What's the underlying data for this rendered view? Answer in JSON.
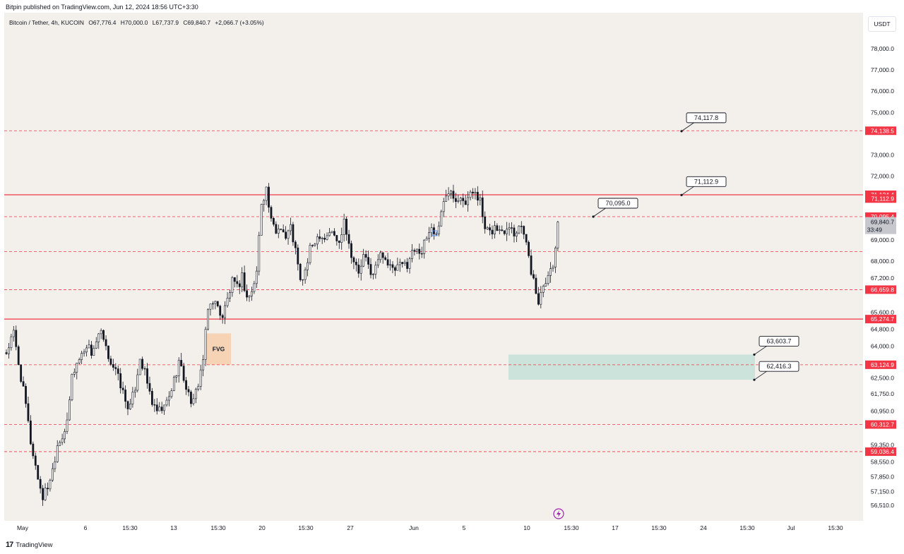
{
  "header": {
    "published": "Bitpin published on TradingView.com, Jun 12, 2024 18:56 UTC+3:30"
  },
  "legend": {
    "symbol": "Bitcoin / Tether, 4h, KUCOIN",
    "open": "O67,776.4",
    "high": "H70,000.0",
    "low": "L67,737.9",
    "close": "C69,840.7",
    "change": "+2,066.7 (+3.05%)"
  },
  "currency": "USDT",
  "footer": {
    "brand": "TradingView"
  },
  "colors": {
    "up": "#131722",
    "down": "#131722",
    "resistance": "#f23645",
    "zone": "#a9d9cd",
    "fvg": "#f7c9a1",
    "price_badge": "#c6c8ce"
  },
  "chart_data": {
    "type": "candlestick",
    "symbol": "Bitcoin / Tether",
    "timeframe": "4h",
    "exchange": "KUCOIN",
    "x_ticks": [
      "May",
      "6",
      "15:30",
      "13",
      "15:30",
      "20",
      "15:30",
      "27",
      "Jun",
      "5",
      "10",
      "15:30",
      "17",
      "15:30",
      "24",
      "15:30",
      "Jul",
      "15:30"
    ],
    "y_ticks": [
      "78,000.0",
      "77,000.0",
      "76,000.0",
      "75,000.0",
      "73,000.0",
      "72,000.0",
      "69,000.0",
      "68,000.0",
      "67,200.0",
      "65,600.0",
      "64,800.0",
      "64,000.0",
      "62,500.0",
      "61,750.0",
      "60,950.0",
      "59,350.0",
      "58,550.0",
      "57,850.0",
      "57,150.0",
      "56,510.0"
    ],
    "ylim": [
      56200,
      79500
    ],
    "horizontal_levels": [
      {
        "value": 74138.5,
        "label": "74,138.5",
        "style": "dashed"
      },
      {
        "value": 71124.4,
        "label": "71,124.4",
        "style": "solid"
      },
      {
        "value": 71112.9,
        "label": "71,112.9",
        "style": "solid-badge"
      },
      {
        "value": 70095.4,
        "label": "70,095.4",
        "style": "dashed"
      },
      {
        "value": 68450,
        "label": "",
        "style": "dashed"
      },
      {
        "value": 66659.8,
        "label": "66,659.8",
        "style": "dashed"
      },
      {
        "value": 65274.7,
        "label": "65,274.7",
        "style": "solid"
      },
      {
        "value": 63124.9,
        "label": "63,124.9",
        "style": "dashed"
      },
      {
        "value": 60312.7,
        "label": "60,312.7",
        "style": "dashed"
      },
      {
        "value": 59036.4,
        "label": "59,036.4",
        "style": "dashed"
      }
    ],
    "current_price": {
      "value": 69840.7,
      "label": "69,840.7",
      "countdown": "33:49"
    },
    "callouts": [
      {
        "label": "74,117.8",
        "value": 74117.8
      },
      {
        "label": "71,112.9",
        "value": 71112.9
      },
      {
        "label": "70,095.0",
        "value": 70095.0
      },
      {
        "label": "63,603.7",
        "value": 63603.7
      },
      {
        "label": "62,416.3",
        "value": 62416.3
      }
    ],
    "zones": [
      {
        "label": "FVG",
        "low": 63124.9,
        "high": 64600
      },
      {
        "label": "",
        "low": 62416.3,
        "high": 63603.7
      }
    ],
    "price_path": [
      [
        0,
        63700
      ],
      [
        3,
        64600
      ],
      [
        5,
        63200
      ],
      [
        8,
        61200
      ],
      [
        10,
        59500
      ],
      [
        13,
        57800
      ],
      [
        15,
        56900
      ],
      [
        17,
        57400
      ],
      [
        19,
        58200
      ],
      [
        21,
        59400
      ],
      [
        23,
        59800
      ],
      [
        25,
        60300
      ],
      [
        27,
        62600
      ],
      [
        29,
        63200
      ],
      [
        31,
        63600
      ],
      [
        33,
        64100
      ],
      [
        35,
        63700
      ],
      [
        37,
        64200
      ],
      [
        39,
        64600
      ],
      [
        41,
        63800
      ],
      [
        43,
        63300
      ],
      [
        45,
        62800
      ],
      [
        47,
        62200
      ],
      [
        49,
        61400
      ],
      [
        51,
        61100
      ],
      [
        53,
        62100
      ],
      [
        55,
        63500
      ],
      [
        57,
        62700
      ],
      [
        59,
        61800
      ],
      [
        61,
        61000
      ],
      [
        63,
        60900
      ],
      [
        65,
        61100
      ],
      [
        67,
        61600
      ],
      [
        69,
        62400
      ],
      [
        71,
        63300
      ],
      [
        73,
        62500
      ],
      [
        75,
        61700
      ],
      [
        77,
        61300
      ],
      [
        79,
        62300
      ],
      [
        81,
        63400
      ],
      [
        83,
        65700
      ],
      [
        85,
        66200
      ],
      [
        87,
        65800
      ],
      [
        89,
        65400
      ],
      [
        91,
        66200
      ],
      [
        93,
        67000
      ],
      [
        95,
        66700
      ],
      [
        97,
        67300
      ],
      [
        99,
        66300
      ],
      [
        101,
        66500
      ],
      [
        103,
        67500
      ],
      [
        105,
        70800
      ],
      [
        107,
        71400
      ],
      [
        109,
        69800
      ],
      [
        111,
        69400
      ],
      [
        113,
        69700
      ],
      [
        115,
        69100
      ],
      [
        117,
        69600
      ],
      [
        119,
        68500
      ],
      [
        121,
        67000
      ],
      [
        123,
        67500
      ],
      [
        125,
        68500
      ],
      [
        127,
        69000
      ],
      [
        129,
        69300
      ],
      [
        131,
        69100
      ],
      [
        133,
        69400
      ],
      [
        135,
        69200
      ],
      [
        137,
        68800
      ],
      [
        139,
        70100
      ],
      [
        141,
        68800
      ],
      [
        143,
        68000
      ],
      [
        145,
        67400
      ],
      [
        147,
        68200
      ],
      [
        149,
        67800
      ],
      [
        151,
        67300
      ],
      [
        153,
        68100
      ],
      [
        155,
        68400
      ],
      [
        157,
        67900
      ],
      [
        159,
        67500
      ],
      [
        161,
        67700
      ],
      [
        163,
        67800
      ],
      [
        165,
        67900
      ],
      [
        167,
        68400
      ],
      [
        169,
        68700
      ],
      [
        171,
        68400
      ],
      [
        173,
        69100
      ],
      [
        175,
        69600
      ],
      [
        177,
        69200
      ],
      [
        179,
        70400
      ],
      [
        181,
        71000
      ],
      [
        183,
        71500
      ],
      [
        185,
        70900
      ],
      [
        187,
        71200
      ],
      [
        189,
        70800
      ],
      [
        191,
        71100
      ],
      [
        193,
        71400
      ],
      [
        195,
        70800
      ],
      [
        197,
        69400
      ],
      [
        199,
        69300
      ],
      [
        201,
        69600
      ],
      [
        203,
        69400
      ],
      [
        205,
        69500
      ],
      [
        207,
        69800
      ],
      [
        209,
        69300
      ],
      [
        211,
        69700
      ],
      [
        213,
        69500
      ],
      [
        215,
        68100
      ],
      [
        217,
        67000
      ],
      [
        219,
        66100
      ],
      [
        221,
        67000
      ],
      [
        223,
        67400
      ],
      [
        225,
        67800
      ],
      [
        227,
        69840.7
      ]
    ]
  }
}
